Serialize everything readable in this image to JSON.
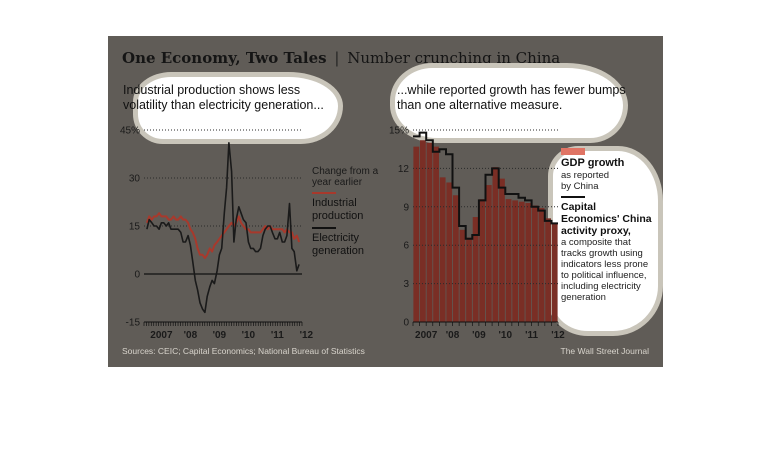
{
  "header": {
    "title_bold": "One Economy, Two Tales",
    "separator": "|",
    "title_sub": "Number crunching in China"
  },
  "colors": {
    "panel": "#605c57",
    "industrial": "#a8392c",
    "electricity": "#1a1a1a",
    "gdp_bar": "#7a2e25",
    "proxy_line": "#111111"
  },
  "chart_data": [
    {
      "type": "line",
      "subtitle": "Industrial production shows less volatility than electricity generation...",
      "ylim": [
        -15,
        45
      ],
      "yticks": [
        "45%",
        "30",
        "15",
        "0",
        "-15"
      ],
      "x_ticks": [
        "2007",
        "'08",
        "'09",
        "'10",
        "'11",
        "'12"
      ],
      "legend_title": "Change from a year earlier",
      "x": [
        2007.0,
        2007.08,
        2007.17,
        2007.25,
        2007.33,
        2007.42,
        2007.5,
        2007.58,
        2007.67,
        2007.75,
        2007.83,
        2007.92,
        2008.0,
        2008.08,
        2008.17,
        2008.25,
        2008.33,
        2008.42,
        2008.5,
        2008.58,
        2008.67,
        2008.75,
        2008.83,
        2008.92,
        2009.0,
        2009.08,
        2009.17,
        2009.25,
        2009.33,
        2009.42,
        2009.5,
        2009.58,
        2009.67,
        2009.75,
        2009.83,
        2009.92,
        2010.0,
        2010.08,
        2010.17,
        2010.25,
        2010.33,
        2010.42,
        2010.5,
        2010.58,
        2010.67,
        2010.75,
        2010.83,
        2010.92,
        2011.0,
        2011.08,
        2011.17,
        2011.25,
        2011.33,
        2011.42,
        2011.5,
        2011.58,
        2011.67,
        2011.75,
        2011.83,
        2011.92,
        2012.0,
        2012.08,
        2012.17,
        2012.25
      ],
      "series": [
        {
          "name": "Industrial production",
          "values": [
            16,
            18,
            17,
            18,
            18,
            19,
            18,
            18,
            18,
            17,
            17,
            18,
            17,
            17,
            18,
            17,
            17,
            16,
            14,
            13,
            11,
            8,
            6,
            6,
            5,
            6,
            8,
            7,
            9,
            10,
            11,
            12,
            13,
            14,
            15,
            16,
            15,
            16,
            18,
            16,
            15,
            14,
            14,
            13,
            13,
            13,
            13,
            13,
            14,
            15,
            14,
            15,
            14,
            14,
            14,
            14,
            14,
            13,
            14,
            13,
            13,
            11,
            12,
            10
          ]
        },
        {
          "name": "Electricity generation",
          "values": [
            14,
            17,
            16,
            15,
            15,
            14,
            16,
            16,
            15,
            16,
            14,
            14,
            14,
            14,
            13,
            10,
            10,
            12,
            9,
            4,
            -2,
            -5,
            -9,
            -11,
            -12,
            -7,
            -4,
            -2,
            -3,
            1,
            6,
            8,
            19,
            27,
            41,
            32,
            10,
            17,
            21,
            19,
            17,
            16,
            10,
            8,
            8,
            7,
            7,
            8,
            12,
            14,
            15,
            15,
            13,
            11,
            11,
            13,
            10,
            10,
            12,
            22,
            8,
            7,
            1,
            3
          ]
        }
      ]
    },
    {
      "type": "bar",
      "subtitle": "...while reported growth has fewer bumps than one alternative measure.",
      "ylim": [
        0,
        15
      ],
      "yticks": [
        "15%",
        "12",
        "9",
        "6",
        "3",
        "0"
      ],
      "x_ticks": [
        "2007",
        "'08",
        "'09",
        "'10",
        "'11",
        "'12"
      ],
      "categories": [
        "2007Q1",
        "2007Q2",
        "2007Q3",
        "2007Q4",
        "2008Q1",
        "2008Q2",
        "2008Q3",
        "2008Q4",
        "2009Q1",
        "2009Q2",
        "2009Q3",
        "2009Q4",
        "2010Q1",
        "2010Q2",
        "2010Q3",
        "2010Q4",
        "2011Q1",
        "2011Q2",
        "2011Q3",
        "2011Q4",
        "2012Q1",
        "2012Q2"
      ],
      "series": [
        {
          "name": "GDP growth",
          "values": [
            13.7,
            14.2,
            14.0,
            13.7,
            11.3,
            10.9,
            9.9,
            7.2,
            6.6,
            8.2,
            9.6,
            10.7,
            12.1,
            11.2,
            9.6,
            9.5,
            9.4,
            9.3,
            9.1,
            8.9,
            8.1,
            7.7
          ]
        },
        {
          "name": "Capital Economics' China activity proxy",
          "values": [
            14.5,
            14.8,
            14.2,
            13.3,
            13.5,
            13.1,
            10.5,
            7.5,
            6.5,
            6.8,
            9.5,
            11.5,
            12.0,
            10.5,
            10.0,
            10.0,
            9.7,
            9.5,
            9.0,
            8.7,
            7.9,
            7.7
          ]
        }
      ]
    }
  ],
  "legend1": {
    "caption": "Change from a year earlier",
    "industrial": "Industrial production",
    "electricity": "Electricity generation"
  },
  "legend2": {
    "gdp_label": "GDP growth",
    "gdp_sub": "as reported by China",
    "proxy_label": "Capital Economics' China activity proxy,",
    "proxy_sub": "a composite that tracks growth using indicators less prone to political influence, including electricity generation"
  },
  "footer": {
    "sources": "Sources: CEIC; Capital Economics; National Bureau of Statistics",
    "credit": "The Wall Street Journal"
  }
}
